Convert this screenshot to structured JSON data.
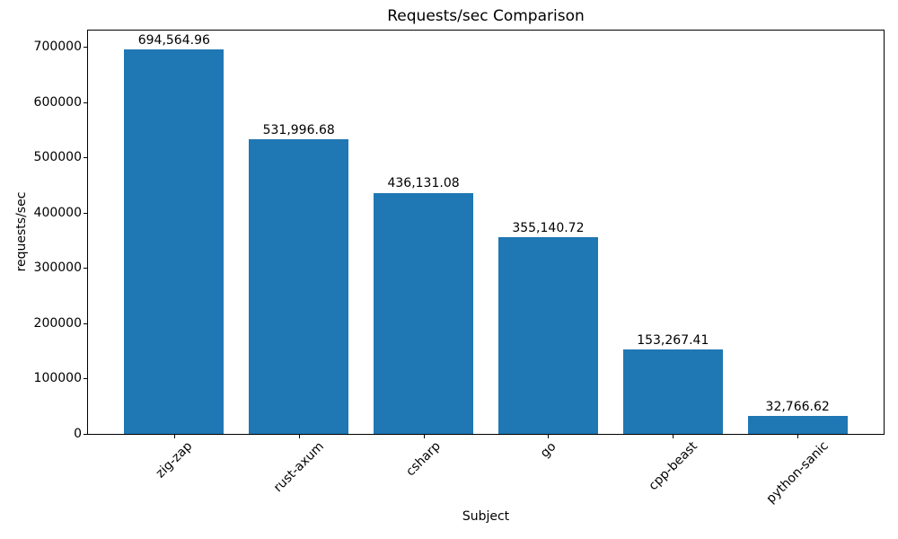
{
  "chart_data": {
    "type": "bar",
    "title": "Requests/sec Comparison",
    "xlabel": "Subject",
    "ylabel": "requests/sec",
    "categories": [
      "zig-zap",
      "rust-axum",
      "csharp",
      "go",
      "cpp-beast",
      "python-sanic"
    ],
    "values": [
      694564.96,
      531996.68,
      436131.08,
      355140.72,
      153267.41,
      32766.62
    ],
    "value_labels": [
      "694,564.96",
      "531,996.68",
      "436,131.08",
      "355,140.72",
      "153,267.41",
      "32,766.62"
    ],
    "yticks": [
      0,
      100000,
      200000,
      300000,
      400000,
      500000,
      600000,
      700000
    ],
    "ylim": [
      0,
      729293
    ],
    "grid": false,
    "legend": null,
    "bar_color": "#1f77b4",
    "axis_color": "#000000",
    "text_color": "#000000",
    "background_color": "#ffffff"
  }
}
